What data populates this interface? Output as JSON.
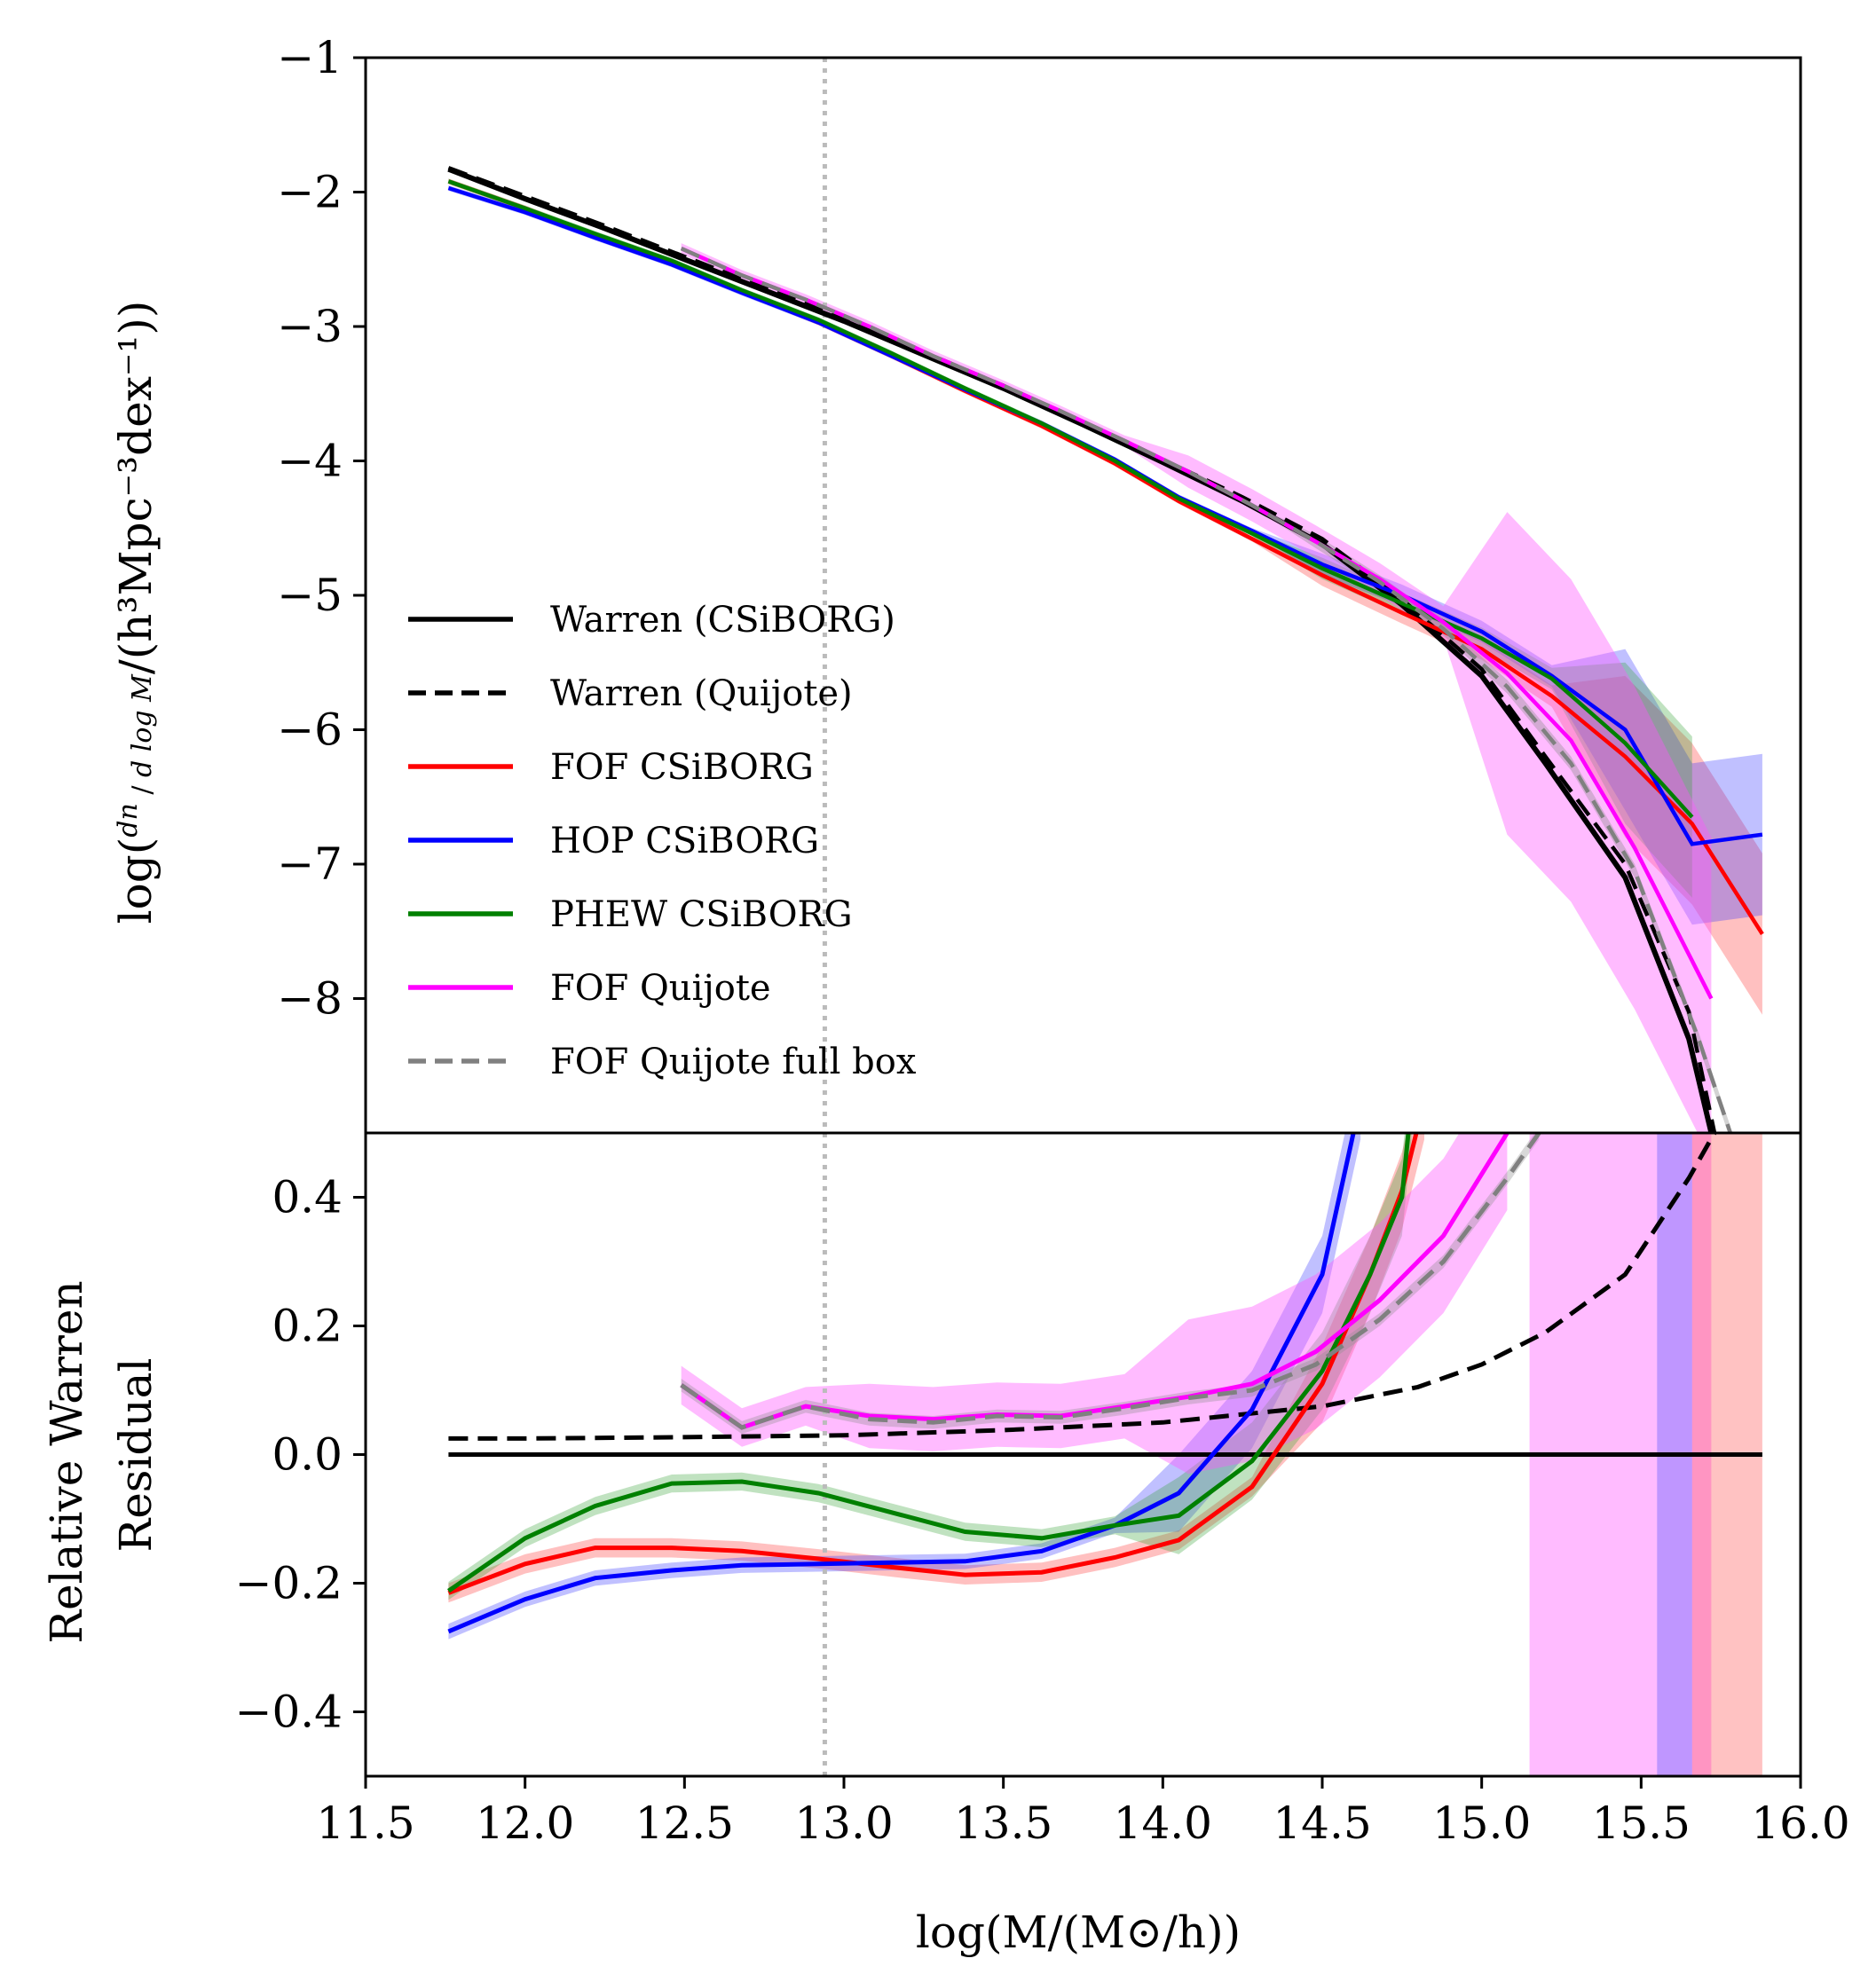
{
  "chart_data": [
    {
      "type": "line",
      "panel": "top",
      "title": "",
      "ylabel": "log(dn/(d log M)/(h^3Mpc^-3dex^-1))",
      "ylim": [
        -9.0,
        -1.0
      ],
      "yticks": [
        -8,
        -7,
        -6,
        -5,
        -4,
        -3,
        -2,
        -1
      ],
      "ytick_labels": [
        "−8",
        "−7",
        "−6",
        "−5",
        "−4",
        "−3",
        "−2",
        "−1"
      ],
      "xlim": [
        11.5,
        16.0
      ],
      "legend_position": "center-left",
      "vline": 12.94,
      "series": [
        {
          "name": "Warren (CSiBORG)",
          "color": "#000000",
          "dash": "solid",
          "x": [
            11.76,
            12.0,
            12.25,
            12.5,
            12.75,
            13.0,
            13.25,
            13.5,
            13.75,
            14.0,
            14.25,
            14.5,
            14.75,
            15.0,
            15.2,
            15.45,
            15.65,
            15.72
          ],
          "y": [
            -1.83,
            -2.05,
            -2.27,
            -2.5,
            -2.73,
            -2.96,
            -3.21,
            -3.46,
            -3.73,
            -4.01,
            -4.3,
            -4.62,
            -5.07,
            -5.6,
            -6.25,
            -7.1,
            -8.3,
            -9.0
          ]
        },
        {
          "name": "Warren (Quijote)",
          "color": "#000000",
          "dash": "dashed",
          "x": [
            11.76,
            12.0,
            12.25,
            12.5,
            12.75,
            13.0,
            13.25,
            13.5,
            13.75,
            14.0,
            14.25,
            14.5,
            14.75,
            15.0,
            15.2,
            15.45,
            15.65,
            15.73
          ],
          "y": [
            -1.82,
            -2.03,
            -2.25,
            -2.48,
            -2.71,
            -2.94,
            -3.19,
            -3.44,
            -3.71,
            -3.99,
            -4.27,
            -4.58,
            -5.03,
            -5.55,
            -6.2,
            -7.0,
            -8.1,
            -9.0
          ]
        },
        {
          "name": "FOF CSiBORG",
          "color": "#ff0000",
          "dash": "solid",
          "x": [
            11.76,
            12.0,
            12.22,
            12.46,
            12.68,
            12.92,
            13.15,
            13.38,
            13.62,
            13.85,
            14.05,
            14.28,
            14.5,
            14.75,
            15.0,
            15.22,
            15.45,
            15.66,
            15.88
          ],
          "y": [
            -1.92,
            -2.12,
            -2.32,
            -2.52,
            -2.74,
            -2.97,
            -3.22,
            -3.48,
            -3.74,
            -4.02,
            -4.3,
            -4.58,
            -4.85,
            -5.13,
            -5.4,
            -5.75,
            -6.2,
            -6.7,
            -7.52
          ]
        },
        {
          "name": "HOP CSiBORG",
          "color": "#0000ff",
          "dash": "solid",
          "x": [
            11.76,
            12.0,
            12.22,
            12.46,
            12.68,
            12.92,
            13.15,
            13.38,
            13.62,
            13.85,
            14.05,
            14.28,
            14.5,
            14.75,
            15.0,
            15.22,
            15.45,
            15.66,
            15.88
          ],
          "y": [
            -1.97,
            -2.15,
            -2.34,
            -2.54,
            -2.75,
            -2.97,
            -3.22,
            -3.47,
            -3.72,
            -3.99,
            -4.27,
            -4.52,
            -4.77,
            -5.0,
            -5.27,
            -5.6,
            -6.0,
            -6.85,
            -6.78
          ]
        },
        {
          "name": "PHEW CSiBORG",
          "color": "#008000",
          "dash": "solid",
          "x": [
            11.76,
            12.0,
            12.22,
            12.46,
            12.68,
            12.92,
            13.15,
            13.38,
            13.62,
            13.85,
            14.05,
            14.28,
            14.5,
            14.75,
            15.0,
            15.22,
            15.45,
            15.66
          ],
          "y": [
            -1.92,
            -2.12,
            -2.31,
            -2.51,
            -2.73,
            -2.95,
            -3.2,
            -3.46,
            -3.72,
            -4.0,
            -4.28,
            -4.54,
            -4.8,
            -5.06,
            -5.32,
            -5.62,
            -6.1,
            -6.65
          ]
        },
        {
          "name": "FOF Quijote",
          "color": "#ff00ff",
          "dash": "solid",
          "x": [
            12.49,
            12.68,
            12.88,
            13.08,
            13.28,
            13.48,
            13.68,
            13.88,
            14.08,
            14.28,
            14.48,
            14.68,
            14.88,
            15.08,
            15.28,
            15.48,
            15.72
          ],
          "y": [
            -2.42,
            -2.62,
            -2.8,
            -3.0,
            -3.22,
            -3.42,
            -3.63,
            -3.85,
            -4.08,
            -4.33,
            -4.6,
            -4.88,
            -5.2,
            -5.58,
            -6.08,
            -6.88,
            -8.0
          ]
        },
        {
          "name": "FOF Quijote full box",
          "color": "#808080",
          "dash": "dashed",
          "x": [
            12.49,
            12.68,
            12.88,
            13.08,
            13.28,
            13.48,
            13.68,
            13.88,
            14.08,
            14.28,
            14.48,
            14.68,
            14.88,
            15.08,
            15.28,
            15.48,
            15.68,
            15.78
          ],
          "y": [
            -2.42,
            -2.62,
            -2.8,
            -3.0,
            -3.22,
            -3.42,
            -3.63,
            -3.85,
            -4.08,
            -4.33,
            -4.6,
            -4.9,
            -5.25,
            -5.68,
            -6.25,
            -7.05,
            -8.3,
            -9.0
          ]
        }
      ]
    },
    {
      "type": "line",
      "panel": "bottom",
      "ylabel": "Relative Warren Residual",
      "xlabel": "log(M/(M⊙/h))",
      "ylim": [
        -0.5,
        0.5
      ],
      "yticks": [
        -0.4,
        -0.2,
        0.0,
        0.2,
        0.4
      ],
      "ytick_labels": [
        "−0.4",
        "−0.2",
        "0.0",
        "0.2",
        "0.4"
      ],
      "xlim": [
        11.5,
        16.0
      ],
      "xticks": [
        11.5,
        12.0,
        12.5,
        13.0,
        13.5,
        14.0,
        14.5,
        15.0,
        15.5,
        16.0
      ],
      "xtick_labels": [
        "11.5",
        "12.0",
        "12.5",
        "13.0",
        "13.5",
        "14.0",
        "14.5",
        "15.0",
        "15.5",
        "16.0"
      ],
      "vline": 12.94,
      "series": [
        {
          "name": "Warren (CSiBORG)",
          "color": "#000000",
          "dash": "solid",
          "x": [
            11.76,
            15.88
          ],
          "y": [
            0.0,
            0.0
          ]
        },
        {
          "name": "Warren (Quijote)",
          "color": "#000000",
          "dash": "dashed",
          "x": [
            11.76,
            12.0,
            12.5,
            13.0,
            13.5,
            14.0,
            14.5,
            14.8,
            15.0,
            15.2,
            15.45,
            15.65,
            15.73
          ],
          "y": [
            0.025,
            0.025,
            0.027,
            0.03,
            0.038,
            0.05,
            0.075,
            0.105,
            0.14,
            0.19,
            0.28,
            0.43,
            0.5
          ]
        },
        {
          "name": "FOF CSiBORG",
          "color": "#ff0000",
          "dash": "solid",
          "x": [
            11.76,
            12.0,
            12.22,
            12.46,
            12.68,
            12.92,
            13.15,
            13.38,
            13.62,
            13.85,
            14.05,
            14.28,
            14.5,
            14.65,
            14.75,
            14.82
          ],
          "y": [
            -0.215,
            -0.17,
            -0.145,
            -0.145,
            -0.15,
            -0.162,
            -0.175,
            -0.187,
            -0.183,
            -0.16,
            -0.133,
            -0.05,
            0.11,
            0.28,
            0.41,
            0.55
          ]
        },
        {
          "name": "HOP CSiBORG",
          "color": "#0000ff",
          "dash": "solid",
          "x": [
            11.76,
            12.0,
            12.22,
            12.46,
            12.68,
            12.92,
            13.15,
            13.38,
            13.62,
            13.85,
            14.05,
            14.28,
            14.5,
            14.62
          ],
          "y": [
            -0.275,
            -0.225,
            -0.192,
            -0.18,
            -0.172,
            -0.17,
            -0.168,
            -0.166,
            -0.15,
            -0.11,
            -0.06,
            0.07,
            0.28,
            0.55
          ]
        },
        {
          "name": "PHEW CSiBORG",
          "color": "#008000",
          "dash": "solid",
          "x": [
            11.76,
            12.0,
            12.22,
            12.46,
            12.68,
            12.92,
            13.15,
            13.38,
            13.62,
            13.85,
            14.05,
            14.28,
            14.5,
            14.65,
            14.75,
            14.78
          ],
          "y": [
            -0.212,
            -0.13,
            -0.08,
            -0.045,
            -0.042,
            -0.06,
            -0.09,
            -0.12,
            -0.13,
            -0.11,
            -0.095,
            -0.01,
            0.13,
            0.28,
            0.4,
            0.55
          ]
        },
        {
          "name": "FOF Quijote",
          "color": "#ff00ff",
          "dash": "solid",
          "x": [
            12.49,
            12.68,
            12.88,
            13.08,
            13.28,
            13.48,
            13.68,
            13.88,
            14.08,
            14.28,
            14.48,
            14.68,
            14.88,
            15.08
          ],
          "y": [
            0.108,
            0.042,
            0.075,
            0.06,
            0.055,
            0.062,
            0.06,
            0.075,
            0.09,
            0.11,
            0.16,
            0.24,
            0.34,
            0.5
          ]
        },
        {
          "name": "FOF Quijote full box",
          "color": "#808080",
          "dash": "dashed",
          "x": [
            12.49,
            12.68,
            12.88,
            13.08,
            13.28,
            13.48,
            13.68,
            13.88,
            14.08,
            14.28,
            14.48,
            14.68,
            14.88,
            15.08,
            15.18
          ],
          "y": [
            0.108,
            0.042,
            0.075,
            0.055,
            0.05,
            0.06,
            0.058,
            0.072,
            0.088,
            0.1,
            0.14,
            0.21,
            0.3,
            0.43,
            0.5
          ]
        }
      ]
    }
  ],
  "legend": [
    {
      "label": "Warren (CSiBORG)",
      "color": "#000000",
      "dash": "solid"
    },
    {
      "label": "Warren (Quijote)",
      "color": "#000000",
      "dash": "dashed"
    },
    {
      "label": "FOF CSiBORG",
      "color": "#ff0000",
      "dash": "solid"
    },
    {
      "label": "HOP CSiBORG",
      "color": "#0000ff",
      "dash": "solid"
    },
    {
      "label": "PHEW CSiBORG",
      "color": "#008000",
      "dash": "solid"
    },
    {
      "label": "FOF Quijote",
      "color": "#ff00ff",
      "dash": "solid"
    },
    {
      "label": "FOF Quijote full box",
      "color": "#808080",
      "dash": "dashed"
    }
  ],
  "labels": {
    "xlabel": "log(M/(M⊙/h))",
    "top_ylabel_prefix": "log(",
    "top_ylabel_frac_num": "dn",
    "top_ylabel_frac_den": "d log M",
    "top_ylabel_suffix": "/(h³Mpc⁻³dex⁻¹))",
    "bottom_ylabel_line1": "Relative Warren",
    "bottom_ylabel_line2": "Residual"
  }
}
